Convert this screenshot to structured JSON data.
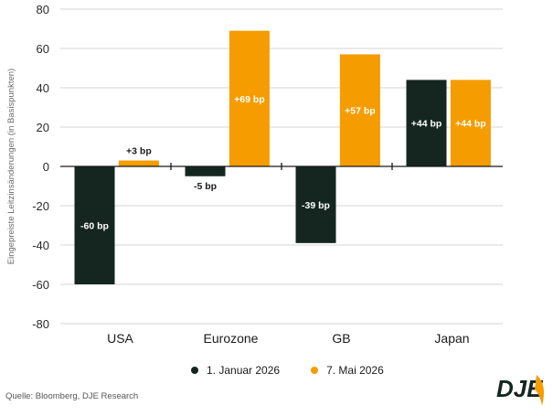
{
  "chart_data": {
    "type": "bar",
    "categories": [
      "USA",
      "Eurozone",
      "GB",
      "Japan"
    ],
    "series": [
      {
        "name": "1. Januar 2026",
        "color": "#14261f",
        "values": [
          -60,
          -5,
          -39,
          44
        ],
        "labels": [
          "-60 bp",
          "-5 bp",
          "-39 bp",
          "+44 bp"
        ]
      },
      {
        "name": "7. Mai 2026",
        "color": "#f59c00",
        "values": [
          3,
          69,
          57,
          44
        ],
        "labels": [
          "+3 bp",
          "+69 bp",
          "+57 bp",
          "+44 bp"
        ]
      }
    ],
    "title": "",
    "xlabel": "",
    "ylabel": "Eingepreiste Leitzinsänderungen (in Basispunkten)",
    "ylim": [
      -80,
      80
    ],
    "yticks": [
      80,
      60,
      40,
      20,
      0,
      -20,
      -40,
      -60,
      -80
    ],
    "ytick_labels": [
      "80",
      "60",
      "40",
      "20",
      "0",
      "-20",
      "-40",
      "-60",
      "-80"
    ],
    "grid": true,
    "legend_position": "bottom"
  },
  "source": "Quelle: Bloomberg, DJE Research",
  "logo": {
    "text": "DJE",
    "color": "#14261f",
    "accent": "#f59c00"
  }
}
